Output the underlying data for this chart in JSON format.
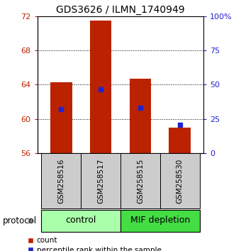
{
  "title": "GDS3626 / ILMN_1740949",
  "samples": [
    "GSM258516",
    "GSM258517",
    "GSM258515",
    "GSM258530"
  ],
  "bar_bottoms": [
    56,
    56,
    56,
    56
  ],
  "bar_tops": [
    64.3,
    71.5,
    64.7,
    59.0
  ],
  "percentile_values": [
    61.1,
    63.5,
    61.3,
    59.3
  ],
  "ylim": [
    56,
    72
  ],
  "yticks_left": [
    56,
    60,
    64,
    68,
    72
  ],
  "yticks_right": [
    0,
    25,
    50,
    75,
    100
  ],
  "ytick_right_labels": [
    "0",
    "25",
    "50",
    "75",
    "100%"
  ],
  "bar_color": "#bb2200",
  "blue_color": "#2222cc",
  "groups": [
    {
      "label": "control",
      "samples": [
        0,
        1
      ],
      "color": "#aaffaa"
    },
    {
      "label": "MIF depletion",
      "samples": [
        2,
        3
      ],
      "color": "#44dd44"
    }
  ],
  "protocol_label": "protocol",
  "legend_count_label": "count",
  "legend_pct_label": "percentile rank within the sample",
  "bg_plot": "#ffffff",
  "bg_sample_box": "#cccccc",
  "title_fontsize": 10,
  "tick_fontsize": 8,
  "label_fontsize": 8,
  "group_fontsize": 9,
  "sample_fontsize": 7.5
}
